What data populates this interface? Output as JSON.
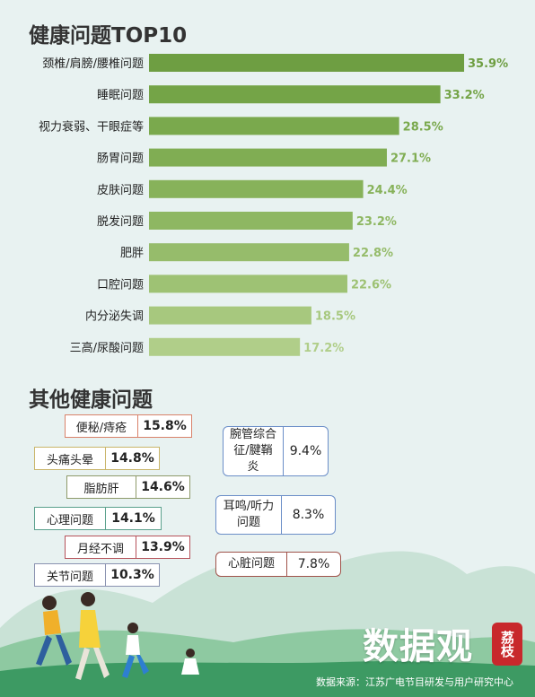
{
  "chart_data": {
    "type": "bar",
    "title": "健康问题TOP10",
    "categories": [
      "颈椎/肩膀/腰椎问题",
      "睡眠问题",
      "视力衰弱、干眼症等",
      "肠胃问题",
      "皮肤问题",
      "脱发问题",
      "肥胖",
      "口腔问题",
      "内分泌失调",
      "三高/尿酸问题"
    ],
    "values": [
      35.9,
      33.2,
      28.5,
      27.1,
      24.4,
      23.2,
      22.8,
      22.6,
      18.5,
      17.2
    ],
    "value_labels": [
      "35.9%",
      "33.2%",
      "28.5%",
      "27.1%",
      "24.4%",
      "23.2%",
      "22.8%",
      "22.6%",
      "18.5%",
      "17.2%"
    ],
    "unit": "%",
    "xlim": [
      0,
      36
    ],
    "colors": [
      "#6e9e42",
      "#74a447",
      "#7aa94d",
      "#80ad53",
      "#87b25a",
      "#8eb762",
      "#96bc6b",
      "#9ec274",
      "#a7c87e",
      "#b0ce89"
    ]
  },
  "other": {
    "title": "其他健康问题",
    "items": [
      {
        "label": "便秘/痔疮",
        "value": "15.8%",
        "color": "#d9826a"
      },
      {
        "label": "头痛头晕",
        "value": "14.8%",
        "color": "#c9b56a"
      },
      {
        "label": "脂肪肝",
        "value": "14.6%",
        "color": "#8e9a6a"
      },
      {
        "label": "心理问题",
        "value": "14.1%",
        "color": "#5aa08c"
      },
      {
        "label": "月经不调",
        "value": "13.9%",
        "color": "#b6525a"
      },
      {
        "label": "关节问题",
        "value": "10.3%",
        "color": "#8a92b0"
      },
      {
        "label": "腕管综合征/腱鞘炎",
        "value": "9.4%",
        "color": "#6b8ec8"
      },
      {
        "label": "耳鸣/听力问题",
        "value": "8.3%",
        "color": "#6b8ec8"
      },
      {
        "label": "心脏问题",
        "value": "7.8%",
        "color": "#a0524a"
      }
    ]
  },
  "brand": {
    "name": "数据观",
    "seal": "荔枝"
  },
  "source": "数据来源：江苏广电节目研发与用户研究中心"
}
